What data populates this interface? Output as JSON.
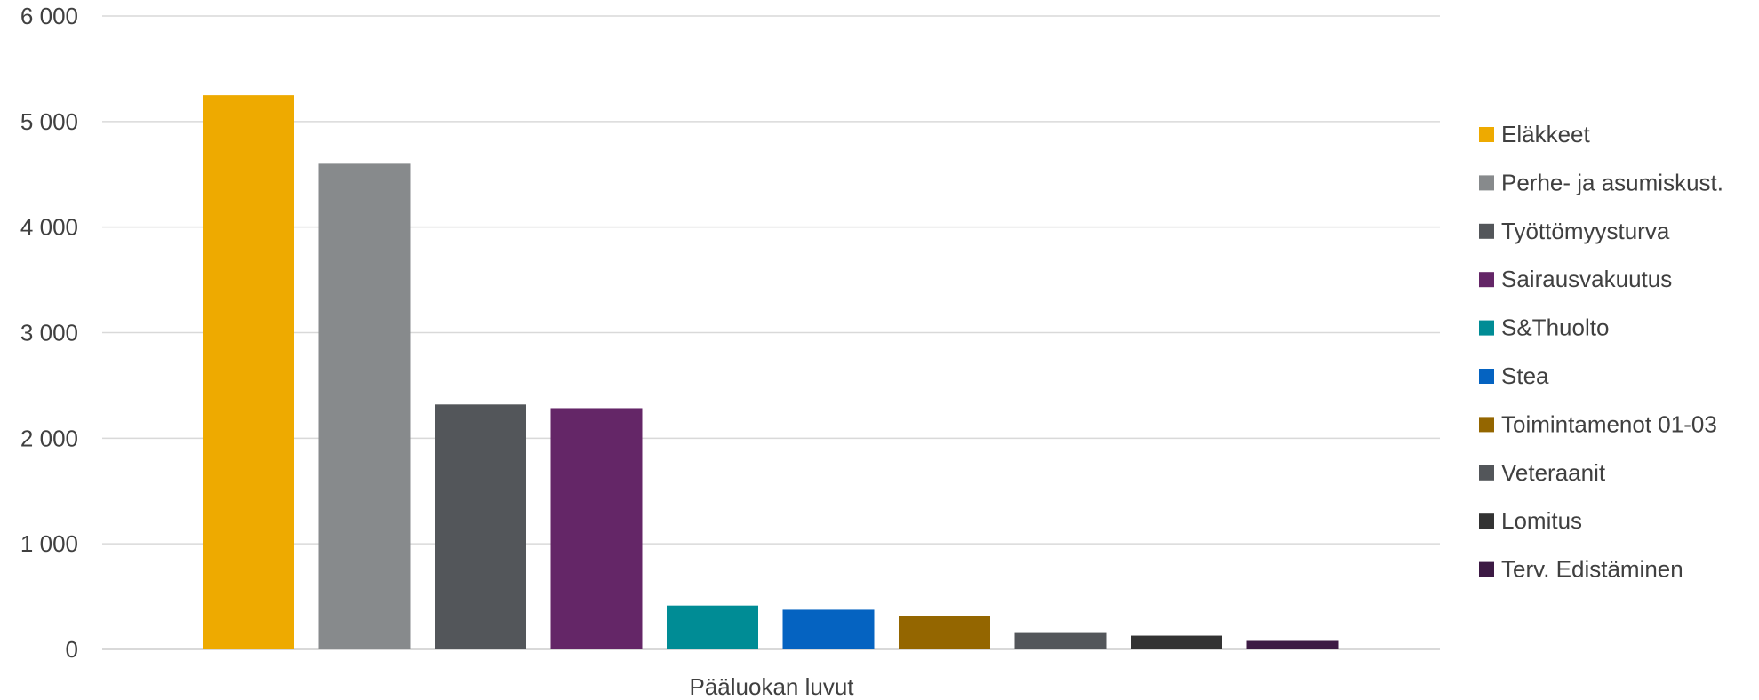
{
  "chart_data": {
    "type": "bar",
    "categories": [
      "Pääluokan luvut"
    ],
    "series": [
      {
        "name": "Eläkkeet",
        "values": [
          5250
        ],
        "color": "#EEAA00"
      },
      {
        "name": "Perhe- ja asumiskust.",
        "values": [
          4600
        ],
        "color": "#878A8C"
      },
      {
        "name": "Työttömyysturva",
        "values": [
          2320
        ],
        "color": "#53565A"
      },
      {
        "name": "Sairausvakuutus",
        "values": [
          2285
        ],
        "color": "#642667"
      },
      {
        "name": "S&Thuolto",
        "values": [
          415
        ],
        "color": "#008C95"
      },
      {
        "name": "Stea",
        "values": [
          375
        ],
        "color": "#0563C1"
      },
      {
        "name": "Toimintamenot 01-03",
        "values": [
          315
        ],
        "color": "#946600"
      },
      {
        "name": "Veteraanit",
        "values": [
          155
        ],
        "color": "#53565A"
      },
      {
        "name": "Lomitus",
        "values": [
          130
        ],
        "color": "#333333"
      },
      {
        "name": "Terv. Edistäminen",
        "values": [
          80
        ],
        "color": "#3C1A44"
      }
    ],
    "ylim": [
      0,
      6000
    ],
    "yticks": [
      0,
      1000,
      2000,
      3000,
      4000,
      5000,
      6000
    ],
    "ytick_labels": [
      "0",
      "1 000",
      "2 000",
      "3 000",
      "4 000",
      "5 000",
      "6 000"
    ],
    "grid": true,
    "legend_position": "right"
  }
}
